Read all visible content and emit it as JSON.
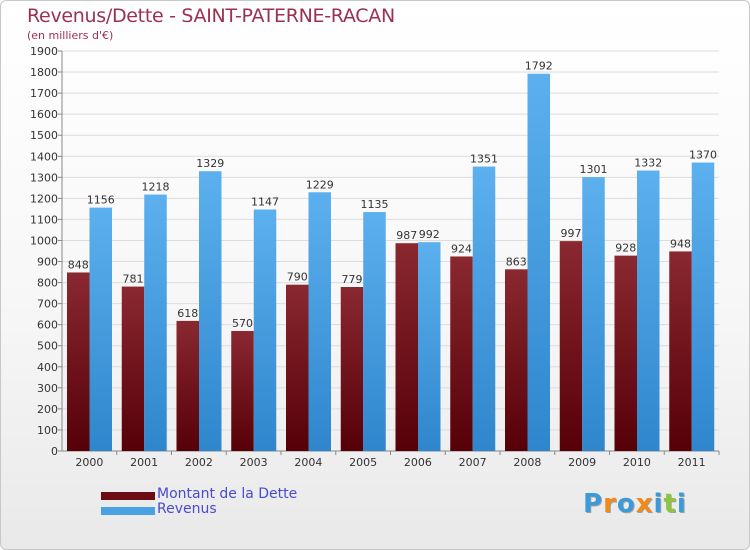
{
  "chart_data": {
    "type": "bar",
    "title": "Revenus/Dette - SAINT-PATERNE-RACAN",
    "subtitle": "(en milliers d'€)",
    "xlabel": "",
    "ylabel": "",
    "categories": [
      "2000",
      "2001",
      "2002",
      "2003",
      "2004",
      "2005",
      "2006",
      "2007",
      "2008",
      "2009",
      "2010",
      "2011"
    ],
    "series": [
      {
        "name": "Montant de la Dette",
        "color": "#6b0b14",
        "values": [
          848,
          781,
          618,
          570,
          790,
          779,
          987,
          924,
          863,
          997,
          928,
          948
        ]
      },
      {
        "name": "Revenus",
        "color": "#4aa2e2",
        "values": [
          1156,
          1218,
          1329,
          1147,
          1229,
          1135,
          992,
          1351,
          1792,
          1301,
          1332,
          1370
        ]
      }
    ],
    "ylim": [
      0,
      1900
    ],
    "yticks": [
      0,
      100,
      200,
      300,
      400,
      500,
      600,
      700,
      800,
      900,
      1000,
      1100,
      1200,
      1300,
      1400,
      1500,
      1600,
      1700,
      1800,
      1900
    ],
    "grid": true,
    "legend_position": "bottom-left"
  },
  "logo": {
    "letters": [
      "P",
      "r",
      "o",
      "x",
      "i",
      "t",
      "i"
    ],
    "colors": [
      "#3d9ad8",
      "#f08a18",
      "#3d9ad8",
      "#f08a18",
      "#3d9ad8",
      "#8cc63f",
      "#3d9ad8"
    ]
  }
}
